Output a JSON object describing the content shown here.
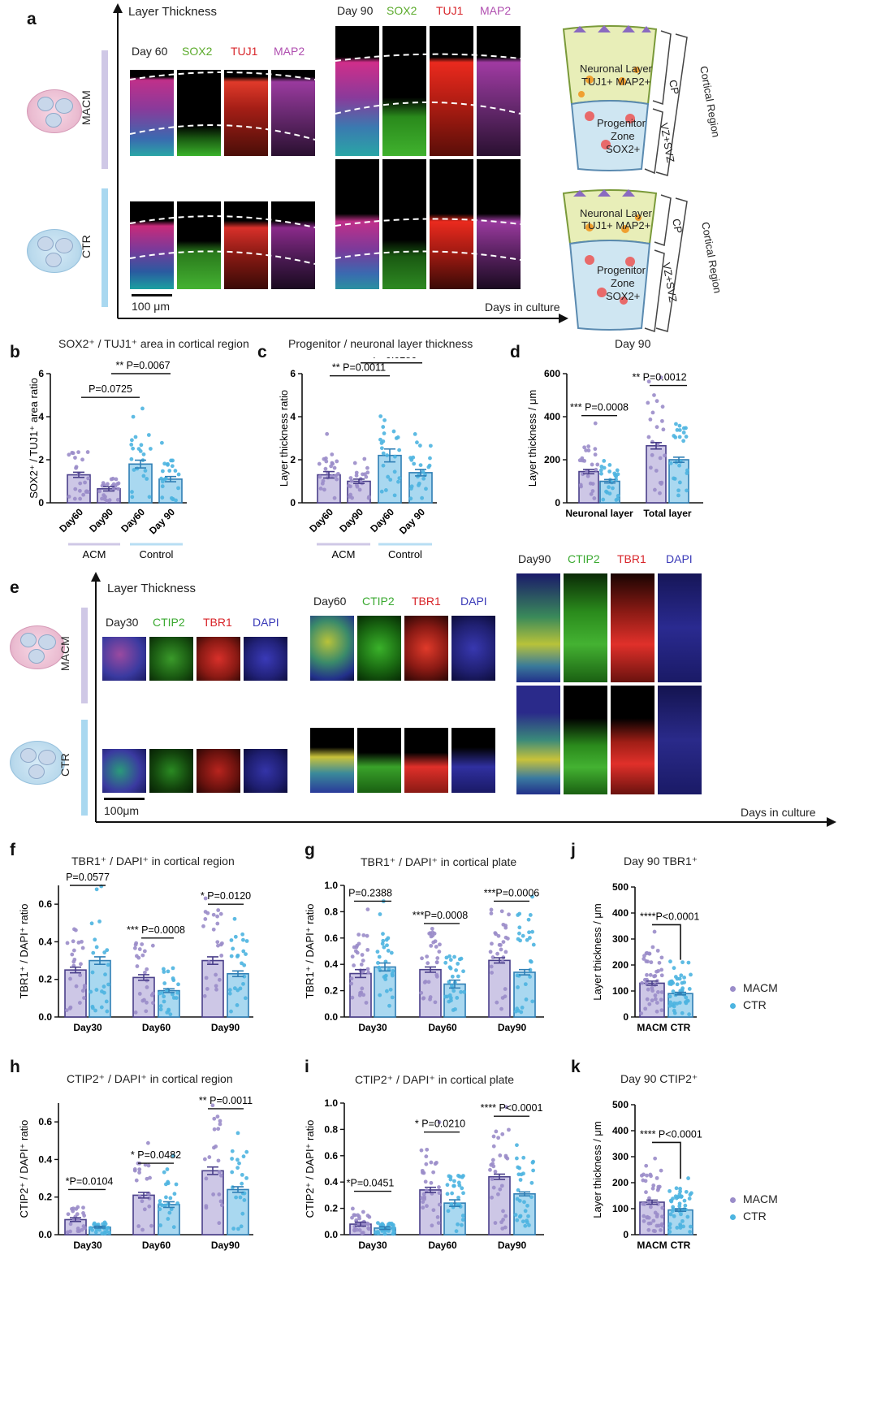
{
  "panels": {
    "a": "a",
    "b": "b",
    "c": "c",
    "d": "d",
    "e": "e",
    "f": "f",
    "g": "g",
    "h": "h",
    "i": "i",
    "j": "j",
    "k": "k"
  },
  "panel_a": {
    "axis_title": "Layer Thickness",
    "x_axis": "Days in culture",
    "day60": {
      "day": "Day 60",
      "m1": "SOX2",
      "m2": "TUJ1",
      "m3": "MAP2"
    },
    "day90": {
      "day": "Day 90",
      "m1": "SOX2",
      "m2": "TUJ1",
      "m3": "MAP2"
    },
    "row1": "MACM",
    "row2": "CTR",
    "scale": "100 μm",
    "schematic": {
      "neuronal": "Neuronal Layer",
      "neuronal_markers": "TUJ1+ MAP2+",
      "prog1": "Progenitor",
      "prog2": "Zone",
      "prog3": "SOX2+",
      "cp": "CP",
      "vz": "VZ+SVZ",
      "region": "Cortical Region"
    }
  },
  "panel_e": {
    "axis_title": "Layer Thickness",
    "x_axis": "Days in culture",
    "day30": {
      "day": "Day30",
      "m1": "CTIP2",
      "m2": "TBR1",
      "m3": "DAPI"
    },
    "day60": {
      "day": "Day60",
      "m1": "CTIP2",
      "m2": "TBR1",
      "m3": "DAPI"
    },
    "day90": {
      "day": "Day90",
      "m1": "CTIP2",
      "m2": "TBR1",
      "m3": "DAPI"
    },
    "row1": "MACM",
    "row2": "CTR",
    "scale": "100μm"
  },
  "legend": {
    "macm": "MACM",
    "ctr": "CTR"
  },
  "colors": {
    "macm_fill": "#cdc7e6",
    "macm_edge": "#4a3f8a",
    "macm_dot": "#9a8cc9",
    "ctr_fill": "#a9d8f0",
    "ctr_edge": "#2f7fb5",
    "ctr_dot": "#4cb4e0",
    "bar_macm_group": "#cfc8e6",
    "bar_ctr_group": "#b8def3"
  },
  "chart_data": [
    {
      "id": "b",
      "type": "bar",
      "title": "SOX2⁺ / TUJ1⁺ area in cortical region",
      "ylabel": "SOX2⁺ / TUJ1⁺ area ratio",
      "ylim": [
        0,
        6
      ],
      "yticks": [
        "0",
        "2",
        "4",
        "6"
      ],
      "categories": [
        "Day60",
        "Day90",
        "Day60",
        "Day 90"
      ],
      "values": [
        1.3,
        0.65,
        1.8,
        1.1
      ],
      "errors": [
        0.12,
        0.1,
        0.18,
        0.12
      ],
      "group_of": [
        "m",
        "m",
        "c",
        "c"
      ],
      "groups": [
        {
          "label": "ACM"
        },
        {
          "label": "Control"
        }
      ],
      "annotations": [
        {
          "text": "P=0.0725"
        },
        {
          "text": "** P=0.0067"
        }
      ]
    },
    {
      "id": "c",
      "type": "bar",
      "title": "Progenitor / neuronal layer thickness",
      "ylabel": "Layer thickness ratio",
      "ylim": [
        0,
        6
      ],
      "yticks": [
        "0",
        "2",
        "4",
        "6"
      ],
      "categories": [
        "Day60",
        "Day90",
        "Day60",
        "Day 90"
      ],
      "values": [
        1.3,
        1.0,
        2.2,
        1.4
      ],
      "errors": [
        0.15,
        0.1,
        0.3,
        0.15
      ],
      "group_of": [
        "m",
        "m",
        "c",
        "c"
      ],
      "groups": [
        {
          "label": "ACM"
        },
        {
          "label": "Control"
        }
      ],
      "annotations": [
        {
          "text": "** P=0.0011"
        },
        {
          "text": "* P=0.0286"
        }
      ]
    },
    {
      "id": "d",
      "type": "bar",
      "title": "Day 90",
      "ylabel": "Layer thickness / μm",
      "ylim": [
        0,
        600
      ],
      "yticks": [
        "0",
        "200",
        "400",
        "600"
      ],
      "categories": [
        "Neuronal layer",
        "Total layer"
      ],
      "series": [
        {
          "values": [
            145,
            265
          ],
          "errors": [
            10,
            15
          ]
        },
        {
          "values": [
            100,
            200
          ],
          "errors": [
            8,
            12
          ]
        }
      ],
      "annotations": [
        {
          "text": "*** P=0.0008"
        },
        {
          "text": "** P=0.0012"
        }
      ]
    },
    {
      "id": "f",
      "type": "bar",
      "title": "TBR1⁺ / DAPI⁺ in cortical region",
      "ylabel": "TBR1⁺ / DAPI⁺ ratio",
      "ylim": [
        0,
        0.7
      ],
      "yticks": [
        "0.0",
        "0.2",
        "0.4",
        "0.6"
      ],
      "categories": [
        "Day30",
        "Day60",
        "Day90"
      ],
      "series": [
        {
          "values": [
            0.25,
            0.21,
            0.3
          ],
          "errors": [
            0.015,
            0.015,
            0.02
          ]
        },
        {
          "values": [
            0.3,
            0.14,
            0.23
          ],
          "errors": [
            0.02,
            0.01,
            0.015
          ]
        }
      ],
      "annotations": [
        {
          "text": "P=0.0577"
        },
        {
          "text": "*** P=0.0008"
        },
        {
          "text": "* P=0.0120"
        }
      ]
    },
    {
      "id": "g",
      "type": "bar",
      "title": "TBR1⁺ / DAPI⁺ in cortical plate",
      "ylabel": "TBR1⁺ / DAPI⁺ ratio",
      "ylim": [
        0,
        1.0
      ],
      "yticks": [
        "0.0",
        "0.2",
        "0.4",
        "0.6",
        "0.8",
        "1.0"
      ],
      "categories": [
        "Day30",
        "Day60",
        "Day90"
      ],
      "series": [
        {
          "values": [
            0.33,
            0.36,
            0.43
          ],
          "errors": [
            0.03,
            0.02,
            0.02
          ]
        },
        {
          "values": [
            0.38,
            0.25,
            0.34
          ],
          "errors": [
            0.03,
            0.03,
            0.02
          ]
        }
      ],
      "annotations": [
        {
          "text": "P=0.2388"
        },
        {
          "text": "***P=0.0008"
        },
        {
          "text": "***P=0.0006"
        }
      ]
    },
    {
      "id": "h",
      "type": "bar",
      "title": "CTIP2⁺ / DAPI⁺ in cortical region",
      "ylabel": "CTIP2⁺ / DAPI⁺ ratio",
      "ylim": [
        0,
        0.7
      ],
      "yticks": [
        "0.0",
        "0.2",
        "0.4",
        "0.6"
      ],
      "categories": [
        "Day30",
        "Day60",
        "Day90"
      ],
      "series": [
        {
          "values": [
            0.08,
            0.21,
            0.34
          ],
          "errors": [
            0.01,
            0.015,
            0.02
          ]
        },
        {
          "values": [
            0.04,
            0.16,
            0.24
          ],
          "errors": [
            0.005,
            0.015,
            0.015
          ]
        }
      ],
      "annotations": [
        {
          "text": "*P=0.0104"
        },
        {
          "text": "* P=0.0482"
        },
        {
          "text": "** P=0.0011"
        }
      ]
    },
    {
      "id": "i",
      "type": "bar",
      "title": "CTIP2⁺ / DAPI⁺ in cortical plate",
      "ylabel": "CTIP2⁺ / DAPI⁺ ratio",
      "ylim": [
        0,
        1.0
      ],
      "yticks": [
        "0.0",
        "0.2",
        "0.4",
        "0.6",
        "0.8",
        "1.0"
      ],
      "categories": [
        "Day30",
        "Day60",
        "Day90"
      ],
      "series": [
        {
          "values": [
            0.08,
            0.34,
            0.44
          ],
          "errors": [
            0.015,
            0.02,
            0.02
          ]
        },
        {
          "values": [
            0.05,
            0.24,
            0.31
          ],
          "errors": [
            0.01,
            0.025,
            0.015
          ]
        }
      ],
      "annotations": [
        {
          "text": "*P=0.0451"
        },
        {
          "text": "* P=0.0210"
        },
        {
          "text": "**** P<0.0001"
        }
      ]
    },
    {
      "id": "j",
      "type": "bar",
      "title": "Day 90 TBR1⁺",
      "ylabel": "Layer thickness / μm",
      "ylim": [
        0,
        500
      ],
      "yticks": [
        "0",
        "100",
        "200",
        "300",
        "400",
        "500"
      ],
      "categories": [
        "MACM",
        "CTR"
      ],
      "values": [
        130,
        90
      ],
      "errors": [
        8,
        5
      ],
      "annotations": [
        {
          "text": "****P<0.0001"
        }
      ]
    },
    {
      "id": "k",
      "type": "bar",
      "title": "Day 90 CTIP2⁺",
      "ylabel": "Layer thickness / μm",
      "ylim": [
        0,
        500
      ],
      "yticks": [
        "0",
        "100",
        "200",
        "300",
        "400",
        "500"
      ],
      "categories": [
        "MACM",
        "CTR"
      ],
      "values": [
        125,
        95
      ],
      "errors": [
        8,
        5
      ],
      "annotations": [
        {
          "text": "**** P<0.0001"
        }
      ]
    }
  ]
}
